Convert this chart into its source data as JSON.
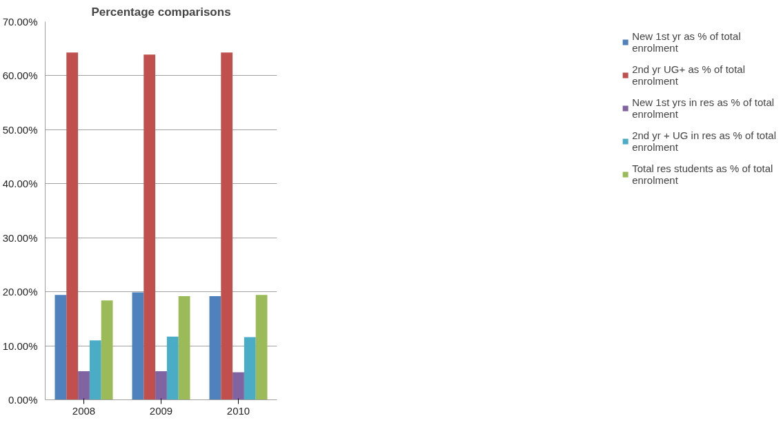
{
  "chart_data": {
    "type": "bar",
    "title": "Percentage comparisons",
    "categories": [
      "2008",
      "2009",
      "2010"
    ],
    "series": [
      {
        "name": "New 1st yr as % of total enrolment",
        "color": "#4f81bd",
        "values": [
          19.4,
          19.9,
          19.2
        ]
      },
      {
        "name": "2nd yr UG+ as % of total enrolment",
        "color": "#c0504d",
        "values": [
          64.3,
          63.9,
          64.3
        ]
      },
      {
        "name": "New 1st yrs in res as % of total enrolment",
        "color": "#8064a2",
        "values": [
          5.3,
          5.3,
          5.1
        ]
      },
      {
        "name": "2nd yr + UG in res as % of total enrolment",
        "color": "#4bacc6",
        "values": [
          11.0,
          11.7,
          11.6
        ]
      },
      {
        "name": "Total res students as % of total enrolment",
        "color": "#9bbb59",
        "values": [
          18.4,
          19.2,
          19.4
        ]
      }
    ],
    "ylim": [
      0,
      70
    ],
    "yticks": [
      {
        "value": 0,
        "label": "0.00%"
      },
      {
        "value": 10,
        "label": "10.00%"
      },
      {
        "value": 20,
        "label": "20.00%"
      },
      {
        "value": 30,
        "label": "30.00%"
      },
      {
        "value": 40,
        "label": "40.00%"
      },
      {
        "value": 50,
        "label": "50.00%"
      },
      {
        "value": 60,
        "label": "60.00%"
      },
      {
        "value": 70,
        "label": "70.00%"
      }
    ],
    "grid": "y",
    "legend": "right"
  }
}
